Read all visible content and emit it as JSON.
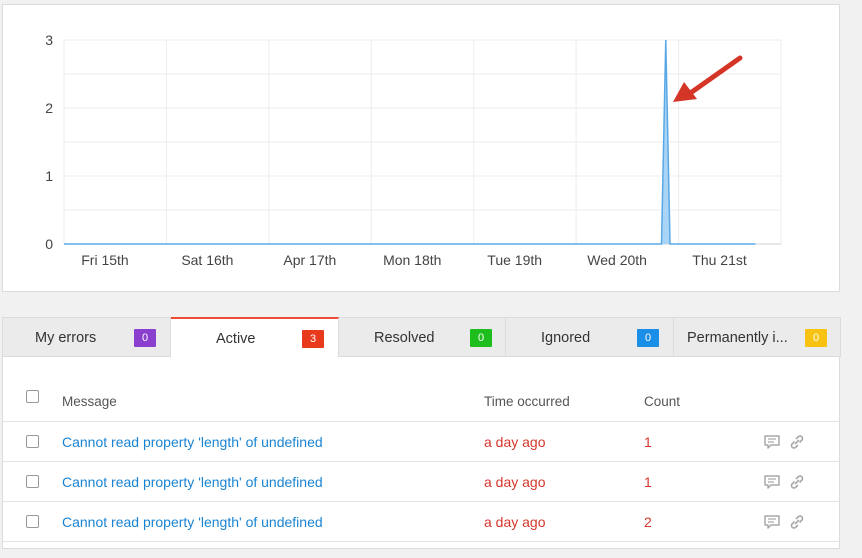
{
  "chart_data": {
    "type": "area",
    "y_ticks": [
      "0",
      "1",
      "2",
      "3"
    ],
    "ylim": [
      0,
      3
    ],
    "x_ticks": [
      "Fri 15th",
      "Sat 16th",
      "Apr 17th",
      "Mon 18th",
      "Tue 19th",
      "Wed 20th",
      "Thu 21st"
    ],
    "series": [
      {
        "points": [
          {
            "x": "Fri 15th",
            "y": 0
          },
          {
            "x": "Wed 20th 20:00",
            "y": 0
          },
          {
            "x": "Wed 20th 21:00",
            "y": 3
          },
          {
            "x": "Wed 20th 22:00",
            "y": 0
          },
          {
            "x": "Thu 21st 18:00",
            "y": 0
          }
        ]
      }
    ],
    "grid": true,
    "fill_color": "#a9d4f5",
    "line_color": "#5aa9e6",
    "annotation": {
      "type": "arrow",
      "color": "#d43526",
      "target": "spike"
    }
  },
  "tabs": [
    {
      "label": "My errors",
      "count": "0",
      "color": "#8b3fcf",
      "active": false
    },
    {
      "label": "Active",
      "count": "3",
      "color": "#e8391c",
      "active": true
    },
    {
      "label": "Resolved",
      "count": "0",
      "color": "#1fbe1f",
      "active": false
    },
    {
      "label": "Ignored",
      "count": "0",
      "color": "#1b8fe8",
      "active": false
    },
    {
      "label": "Permanently i...",
      "count": "0",
      "color": "#f7c211",
      "active": false
    }
  ],
  "table": {
    "headers": {
      "message": "Message",
      "time": "Time occurred",
      "count": "Count"
    },
    "rows": [
      {
        "message": "Cannot read property 'length' of undefined",
        "time": "a day ago",
        "count": "1"
      },
      {
        "message": "Cannot read property 'length' of undefined",
        "time": "a day ago",
        "count": "1"
      },
      {
        "message": "Cannot read property 'length' of undefined",
        "time": "a day ago",
        "count": "2"
      }
    ]
  },
  "icons": {
    "comment": "comment-icon",
    "link": "link-icon"
  }
}
